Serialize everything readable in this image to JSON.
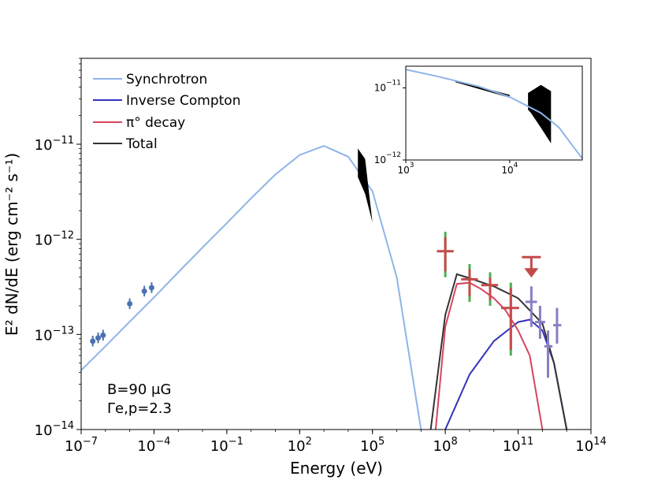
{
  "chart_data": {
    "type": "line",
    "xlabel": "Energy (eV)",
    "ylabel": "E² dN/dE (erg cm⁻² s⁻¹)",
    "xscale": "log",
    "yscale": "log",
    "xlim": [
      1e-07,
      100000000000000.0
    ],
    "ylim": [
      1e-14,
      8e-11
    ],
    "xtick_labels": [
      {
        "value": 1e-07,
        "base": "10",
        "exp": "−7"
      },
      {
        "value": 0.0001,
        "base": "10",
        "exp": "−4"
      },
      {
        "value": 0.1,
        "base": "10",
        "exp": "−1"
      },
      {
        "value": 100.0,
        "base": "10",
        "exp": "2"
      },
      {
        "value": 100000.0,
        "base": "10",
        "exp": "5"
      },
      {
        "value": 100000000.0,
        "base": "10",
        "exp": "8"
      },
      {
        "value": 100000000000.0,
        "base": "10",
        "exp": "11"
      },
      {
        "value": 100000000000000.0,
        "base": "10",
        "exp": "14"
      }
    ],
    "ytick_labels": [
      {
        "value": 1e-14,
        "base": "10",
        "exp": "−14"
      },
      {
        "value": 1e-13,
        "base": "10",
        "exp": "−13"
      },
      {
        "value": 1e-12,
        "base": "10",
        "exp": "−12"
      },
      {
        "value": 1e-11,
        "base": "10",
        "exp": "−11"
      }
    ],
    "legend": {
      "location": "upper-left",
      "entries": [
        {
          "label": "Synchrotron",
          "color": "#8fb4e8"
        },
        {
          "label": "Inverse Compton",
          "color": "#3333bb"
        },
        {
          "label": "π° decay",
          "color": "#d8445e"
        },
        {
          "label": "Total",
          "color": "#333333"
        }
      ]
    },
    "annotations": [
      {
        "text": "B=90 μG"
      },
      {
        "text": "Γe,p=2.3"
      }
    ],
    "series": [
      {
        "name": "Synchrotron",
        "color": "#8fb4e8",
        "points": [
          [
            1e-07,
            4.2e-14
          ],
          [
            1e-06,
            7.5e-14
          ],
          [
            1e-05,
            1.36e-13
          ],
          [
            0.0001,
            2.45e-13
          ],
          [
            0.001,
            4.5e-13
          ],
          [
            0.01,
            8.2e-13
          ],
          [
            0.1,
            1.48e-12
          ],
          [
            1,
            2.7e-12
          ],
          [
            10,
            4.8e-12
          ],
          [
            100,
            7.7e-12
          ],
          [
            1000.0,
            9.6e-12
          ],
          [
            10000.0,
            7.4e-12
          ],
          [
            100000.0,
            3.2e-12
          ],
          [
            1000000.0,
            4e-13
          ],
          [
            10000000.0,
            1e-14
          ]
        ]
      },
      {
        "name": "Inverse Compton",
        "color": "#3333bb",
        "points": [
          [
            100000000.0,
            1e-14
          ],
          [
            1000000000.0,
            3.8e-14
          ],
          [
            10000000000.0,
            8.5e-14
          ],
          [
            100000000000.0,
            1.35e-13
          ],
          [
            300000000000.0,
            1.43e-13
          ],
          [
            1000000000000.0,
            1.1e-13
          ],
          [
            3000000000000.0,
            5e-14
          ],
          [
            10000000000000.0,
            1e-14
          ]
        ]
      },
      {
        "name": "π° decay",
        "color": "#d8445e",
        "points": [
          [
            40000000.0,
            1e-14
          ],
          [
            100000000.0,
            1.2e-13
          ],
          [
            300000000.0,
            3.4e-13
          ],
          [
            1000000000.0,
            3.5e-13
          ],
          [
            3000000000.0,
            3e-13
          ],
          [
            10000000000.0,
            2.4e-13
          ],
          [
            30000000000.0,
            1.8e-13
          ],
          [
            100000000000.0,
            1.1e-13
          ],
          [
            300000000000.0,
            6e-14
          ],
          [
            1000000000000.0,
            1e-14
          ]
        ]
      },
      {
        "name": "Total",
        "color": "#333333",
        "points": [
          [
            25000000.0,
            1e-14
          ],
          [
            100000000.0,
            1.6e-13
          ],
          [
            300000000.0,
            4.3e-13
          ],
          [
            1000000000.0,
            3.9e-13
          ],
          [
            10000000000.0,
            3.2e-13
          ],
          [
            100000000000.0,
            2.4e-13
          ],
          [
            1000000000000.0,
            1.3e-13
          ],
          [
            3000000000000.0,
            5e-14
          ],
          [
            10000000000000.0,
            1e-14
          ]
        ]
      }
    ],
    "data_points": [
      {
        "x": 3e-07,
        "y": 8.5e-14
      },
      {
        "x": 5e-07,
        "y": 9.2e-14
      },
      {
        "x": 8e-07,
        "y": 9.8e-14
      },
      {
        "x": 1e-05,
        "y": 2.1e-13
      },
      {
        "x": 4e-05,
        "y": 2.85e-13
      },
      {
        "x": 8e-05,
        "y": 3.1e-13
      }
    ],
    "fermi_points": [
      {
        "x": 100000000.0,
        "y": 7.5e-13,
        "xerr": [
          45000000.0,
          220000000.0
        ],
        "yerr": [
          4e-13,
          1.2e-12
        ]
      },
      {
        "x": 1000000000.0,
        "y": 3.8e-13,
        "xerr": [
          450000000.0,
          2200000000.0
        ],
        "yerr": [
          2.2e-13,
          5.5e-13
        ]
      },
      {
        "x": 7000000000.0,
        "y": 3.3e-13,
        "xerr": [
          3000000000.0,
          15000000000.0
        ],
        "yerr": [
          2e-13,
          4.5e-13
        ]
      },
      {
        "x": 50000000000.0,
        "y": 1.9e-13,
        "xerr": [
          20000000000.0,
          110000000000.0
        ],
        "yerr": [
          6e-14,
          3.5e-13
        ]
      }
    ],
    "upper_limit": {
      "x": 350000000000.0,
      "y": 6.5e-13
    },
    "hess_points": [
      {
        "x": 350000000000.0,
        "y": 2.2e-13,
        "xerr": [
          200000000000.0,
          600000000000.0
        ],
        "yerr": [
          1.2e-13,
          3.2e-13
        ]
      },
      {
        "x": 800000000000.0,
        "y": 1.35e-13,
        "xerr": [
          500000000000.0,
          1300000000000.0
        ],
        "yerr": [
          9e-14,
          2e-13
        ]
      },
      {
        "x": 1700000000000.0,
        "y": 7.5e-14,
        "xerr": [
          1200000000000.0,
          2600000000000.0
        ],
        "yerr": [
          3.5e-14,
          1.1e-13
        ]
      },
      {
        "x": 4000000000000.0,
        "y": 1.25e-13,
        "xerr": [
          2800000000000.0,
          6000000000000.0
        ],
        "yerr": [
          8e-14,
          1.9e-13
        ]
      }
    ],
    "inset": {
      "xlim": [
        1000.0,
        50000.0
      ],
      "ylim": [
        1e-12,
        2e-11
      ],
      "xtick_labels": [
        {
          "value": 1000.0,
          "base": "10",
          "exp": "3"
        },
        {
          "value": 10000.0,
          "base": "10",
          "exp": "4"
        }
      ],
      "ytick_labels": [
        {
          "value": 1e-12,
          "base": "10",
          "exp": "−12"
        },
        {
          "value": 1e-11,
          "base": "10",
          "exp": "−11"
        }
      ],
      "curve": [
        [
          1000.0,
          1.8e-11
        ],
        [
          2000.0,
          1.45e-11
        ],
        [
          5000.0,
          1.05e-11
        ],
        [
          10000.0,
          7.5e-12
        ],
        [
          20000.0,
          4.5e-12
        ],
        [
          30000.0,
          2.8e-12
        ],
        [
          40000.0,
          1.6e-12
        ],
        [
          50000.0,
          1.05e-12
        ]
      ]
    }
  }
}
